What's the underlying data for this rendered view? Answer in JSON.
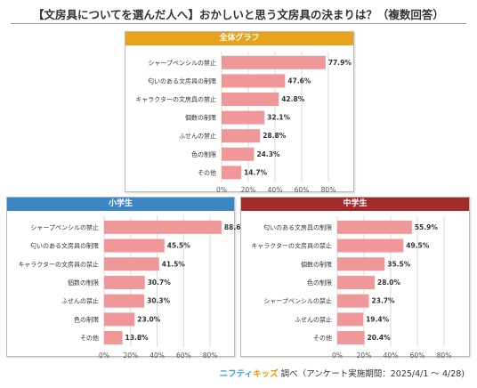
{
  "title": "【文房具についてを選んだ人へ】おかしいと思う文房具の決まりは？（複数回答）",
  "footer": {
    "brand_a": "ニフティ",
    "brand_b": "キッズ",
    "text": "調べ（アンケート実施期間：2025/4/1 ～ 4/28)"
  },
  "colors": {
    "bar": "#f0979a",
    "grid": "#d9d9d9",
    "overall_header": "#e8a21b",
    "elementary_header": "#3d86c6",
    "junior_header": "#a22a2a"
  },
  "chart_data": [
    {
      "type": "bar",
      "orientation": "horizontal",
      "title": "全体グラフ",
      "categories": [
        "シャープペンシルの禁止",
        "匂いのある文房具の制限",
        "キャラクターの文房具の禁止",
        "個数の制限",
        "ふせんの禁止",
        "色の制限",
        "その他"
      ],
      "values": [
        77.9,
        47.6,
        42.8,
        32.1,
        28.8,
        24.3,
        14.7
      ],
      "value_labels": [
        "77.9%",
        "47.6%",
        "42.8%",
        "32.1%",
        "28.8%",
        "24.3%",
        "14.7%"
      ],
      "xlim": [
        0,
        90
      ],
      "ticks": [
        0,
        20,
        40,
        60,
        80
      ],
      "tick_labels": [
        "0%",
        "20%",
        "40%",
        "60%",
        "80%"
      ],
      "grid": true
    },
    {
      "type": "bar",
      "orientation": "horizontal",
      "title": "小学生",
      "categories": [
        "シャープペンシルの禁止",
        "匂いのある文房具の制限",
        "キャラクターの文房具の禁止",
        "個数の制限",
        "ふせんの禁止",
        "色の制限",
        "その他"
      ],
      "values": [
        88.6,
        45.5,
        41.5,
        30.7,
        30.3,
        23.0,
        13.8
      ],
      "value_labels": [
        "88.6%",
        "45.5%",
        "41.5%",
        "30.7%",
        "30.3%",
        "23.0%",
        "13.8%"
      ],
      "xlim": [
        0,
        90
      ],
      "ticks": [
        0,
        20,
        40,
        60,
        80
      ],
      "tick_labels": [
        "0%",
        "20%",
        "40%",
        "60%",
        "80%"
      ],
      "grid": true
    },
    {
      "type": "bar",
      "orientation": "horizontal",
      "title": "中学生",
      "categories": [
        "匂いのある文房具の制限",
        "キャラクターの文房具の禁止",
        "個数の制限",
        "色の制限",
        "シャープペンシルの禁止",
        "ふせんの禁止",
        "その他"
      ],
      "values": [
        55.9,
        49.5,
        35.5,
        28.0,
        23.7,
        19.4,
        20.4
      ],
      "value_labels": [
        "55.9%",
        "49.5%",
        "35.5%",
        "28.0%",
        "23.7%",
        "19.4%",
        "20.4%"
      ],
      "xlim": [
        0,
        90
      ],
      "ticks": [
        0,
        20,
        40,
        60,
        80
      ],
      "tick_labels": [
        "0%",
        "20%",
        "40%",
        "60%",
        "80%"
      ],
      "grid": true
    }
  ]
}
